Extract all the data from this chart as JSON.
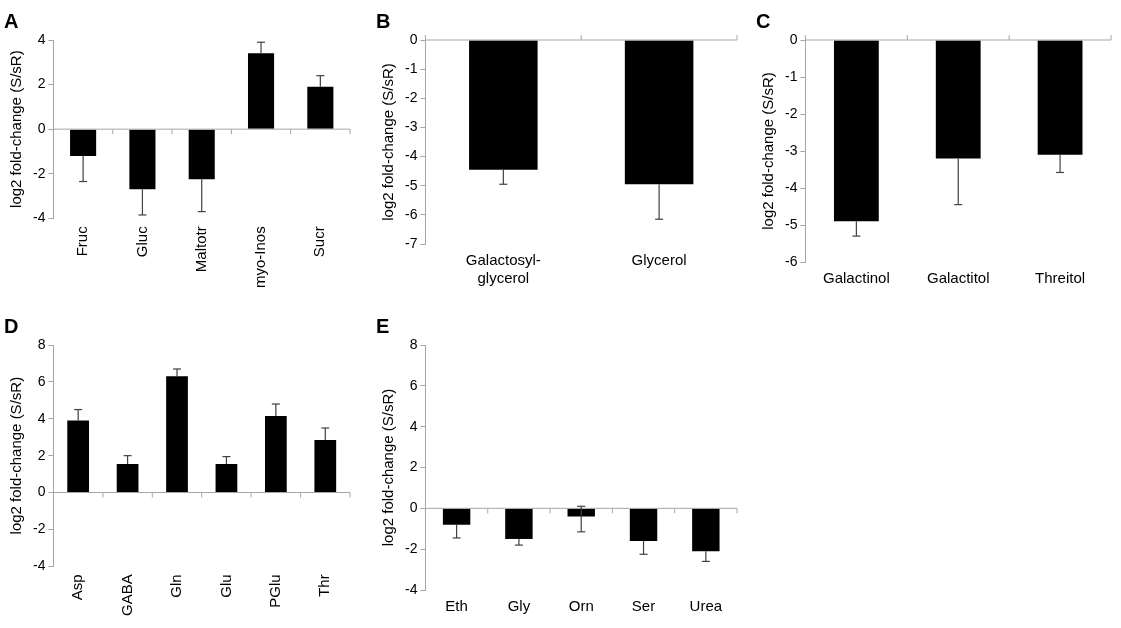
{
  "chart_data": [
    {
      "type": "bar",
      "title": "A",
      "ylabel": "log2 fold-change (S/sR)",
      "categories": [
        "Fruc",
        "Gluc",
        "Maltotr",
        "myo-Inos",
        "Sucr"
      ],
      "values": [
        -1.2,
        -2.7,
        -2.25,
        3.4,
        1.9
      ],
      "errors": [
        [
          -2.35,
          -1.2
        ],
        [
          -3.85,
          -2.7
        ],
        [
          -3.7,
          -2.25
        ],
        [
          3.4,
          3.9
        ],
        [
          1.9,
          2.4
        ]
      ],
      "color": "#000000",
      "ylim": [
        -4,
        4
      ],
      "yticks": [
        -4,
        -2,
        0,
        2,
        4
      ]
    },
    {
      "type": "bar",
      "title": "B",
      "ylabel": "log2 fold-change (S/sR)",
      "categories": [
        "Galactosyl-glycerol",
        "Glycerol"
      ],
      "values": [
        -4.45,
        -4.95
      ],
      "errors": [
        [
          -4.95,
          -4.45
        ],
        [
          -6.15,
          -4.95
        ]
      ],
      "color": "#000000",
      "ylim": [
        -7,
        0
      ],
      "yticks": [
        -7,
        -6,
        -5,
        -4,
        -3,
        -2,
        -1,
        0
      ]
    },
    {
      "type": "bar",
      "title": "C",
      "ylabel": "log2 fold-change (S/sR)",
      "categories": [
        "Galactinol",
        "Galactitol",
        "Threitol"
      ],
      "values": [
        -4.9,
        -3.2,
        -3.1
      ],
      "errors": [
        [
          -5.3,
          -4.9
        ],
        [
          -4.45,
          -3.2
        ],
        [
          -3.58,
          -3.1
        ]
      ],
      "color": "#000000",
      "ylim": [
        -6,
        0
      ],
      "yticks": [
        -6,
        -5,
        -4,
        -3,
        -2,
        -1,
        0
      ]
    },
    {
      "type": "bar",
      "title": "D",
      "ylabel": "log2 fold-change (S/sR)",
      "categories": [
        "Asp",
        "GABA",
        "Gln",
        "Glu",
        "PGlu",
        "Thr"
      ],
      "values": [
        3.9,
        1.55,
        6.3,
        1.55,
        4.15,
        2.85
      ],
      "errors": [
        [
          3.9,
          4.5
        ],
        [
          1.55,
          2.0
        ],
        [
          6.3,
          6.7
        ],
        [
          1.55,
          1.95
        ],
        [
          4.15,
          4.8
        ],
        [
          2.85,
          3.5
        ]
      ],
      "color": "#000000",
      "ylim": [
        -4,
        8
      ],
      "yticks": [
        -4,
        -2,
        0,
        2,
        4,
        6,
        8
      ]
    },
    {
      "type": "bar",
      "title": "E",
      "ylabel": "log2 fold-change (S/sR)",
      "categories": [
        "Eth",
        "Gly",
        "Orn",
        "Ser",
        "Urea"
      ],
      "values": [
        -0.8,
        -1.5,
        -0.4,
        -1.6,
        -2.1
      ],
      "errors": [
        [
          -1.45,
          -0.8
        ],
        [
          -1.8,
          -1.5
        ],
        [
          -1.15,
          0.1
        ],
        [
          -2.25,
          -1.6
        ],
        [
          -2.6,
          -2.1
        ]
      ],
      "color": "#000000",
      "ylim": [
        -4,
        8
      ],
      "yticks": [
        -4,
        -2,
        0,
        2,
        4,
        6,
        8
      ]
    }
  ]
}
